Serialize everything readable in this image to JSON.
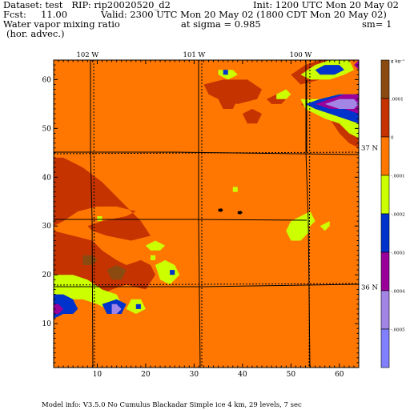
{
  "header": {
    "dataset_line": "Dataset: test   RIP: rip20020520_d2",
    "init_line": "Init: 1200 UTC Mon 20 May 02",
    "fcst_line": "Fcst:     11.00",
    "valid_line": "Valid: 2300 UTC Mon 20 May 02 (1800 CDT Mon 20 May 02)",
    "field_line": "Water vapor mixing ratio",
    "sigma_line": "at sigma = 0.985",
    "sm_line": "sm= 1",
    "advec_line": "(hor. advec.)"
  },
  "footer": "Model info: V3.5.0  No Cumulus   Blackadar   Simple ice      4 km,   29 levels,      7 sec",
  "colors": {
    "background_field": "#ff7700",
    "dark_red": "#c43300",
    "brown": "#8a4a10",
    "yellow_green": "#ccff00",
    "blue": "#0033cc",
    "purple": "#990099",
    "lavender": "#a385e6",
    "periwinkle": "#8080ff"
  },
  "chart_data": {
    "type": "heatmap",
    "xlim": [
      1,
      64
    ],
    "ylim": [
      1,
      64
    ],
    "x_ticks": [
      10,
      20,
      30,
      40,
      50,
      60
    ],
    "y_ticks": [
      10,
      20,
      30,
      40,
      50,
      60
    ],
    "top_labels": [
      {
        "x": 8,
        "text": "102 W"
      },
      {
        "x": 30,
        "text": "101 W"
      },
      {
        "x": 52,
        "text": "100 W"
      }
    ],
    "right_labels": [
      {
        "y": 46,
        "text": "37 N"
      },
      {
        "y": 17.5,
        "text": "36 N"
      }
    ],
    "colorbar": {
      "labels": [
        {
          "value": 0.0002,
          "text": "g kg⁻¹"
        },
        {
          "value": 0.0001,
          "text": ".0001"
        },
        {
          "value": 0,
          "text": "0"
        },
        {
          "value": -0.0001,
          "text": "-.0001"
        },
        {
          "value": -0.0002,
          "text": "-.0002"
        },
        {
          "value": -0.0003,
          "text": "-.0003"
        },
        {
          "value": -0.0004,
          "text": "-.0004"
        },
        {
          "value": -0.0005,
          "text": "-.0005"
        }
      ],
      "bands": [
        {
          "from": 0.0001,
          "to": 0.0002,
          "color": "#8a4a10"
        },
        {
          "from": 0,
          "to": 0.0001,
          "color": "#c43300"
        },
        {
          "from": -0.0001,
          "to": 0,
          "color": "#ff7700"
        },
        {
          "from": -0.0002,
          "to": -0.0001,
          "color": "#ccff00"
        },
        {
          "from": -0.0003,
          "to": -0.0002,
          "color": "#0033cc"
        },
        {
          "from": -0.0004,
          "to": -0.0003,
          "color": "#990099"
        },
        {
          "from": -0.0005,
          "to": -0.0004,
          "color": "#a385e6"
        },
        {
          "from": -0.0006,
          "to": -0.0005,
          "color": "#8080ff"
        }
      ]
    },
    "regions": [
      {
        "color": "#c43300",
        "points": [
          [
            1,
            44
          ],
          [
            3,
            44
          ],
          [
            7,
            42
          ],
          [
            11,
            39
          ],
          [
            15,
            35
          ],
          [
            19,
            31
          ],
          [
            21,
            28
          ],
          [
            17,
            27
          ],
          [
            12,
            28
          ],
          [
            9,
            29
          ],
          [
            8,
            30
          ],
          [
            11,
            31
          ],
          [
            16,
            32
          ],
          [
            18,
            33
          ],
          [
            14,
            34
          ],
          [
            10,
            34
          ],
          [
            6,
            33
          ],
          [
            3,
            31
          ],
          [
            1,
            30
          ]
        ]
      },
      {
        "color": "#c43300",
        "points": [
          [
            1,
            29
          ],
          [
            5,
            28
          ],
          [
            9,
            27
          ],
          [
            11,
            25
          ],
          [
            14,
            23
          ],
          [
            16,
            22
          ],
          [
            19,
            23
          ],
          [
            21,
            22
          ],
          [
            22,
            20
          ],
          [
            20,
            17
          ],
          [
            16,
            18
          ],
          [
            13,
            17
          ],
          [
            9,
            15
          ],
          [
            5,
            16
          ],
          [
            2,
            14
          ],
          [
            1,
            15
          ]
        ]
      },
      {
        "color": "#c43300",
        "points": [
          [
            1,
            24
          ],
          [
            2,
            25
          ],
          [
            3,
            24
          ],
          [
            3,
            23
          ],
          [
            1,
            22
          ]
        ]
      },
      {
        "color": "#8a4a10",
        "points": [
          [
            7,
            24
          ],
          [
            9,
            24
          ],
          [
            10,
            23
          ],
          [
            9,
            22
          ],
          [
            7,
            22
          ]
        ]
      },
      {
        "color": "#8a4a10",
        "points": [
          [
            12,
            21
          ],
          [
            14,
            22
          ],
          [
            16,
            21
          ],
          [
            15,
            19
          ],
          [
            13,
            19
          ]
        ]
      },
      {
        "color": "#ccff00",
        "points": [
          [
            1,
            20
          ],
          [
            5,
            20
          ],
          [
            8,
            19
          ],
          [
            11,
            17
          ],
          [
            14,
            16
          ],
          [
            15,
            14
          ],
          [
            14,
            12
          ],
          [
            12,
            13
          ],
          [
            10,
            14
          ],
          [
            7,
            15
          ],
          [
            4,
            15
          ],
          [
            1,
            12
          ]
        ]
      },
      {
        "color": "#0033cc",
        "points": [
          [
            1,
            16
          ],
          [
            3,
            16
          ],
          [
            5,
            15
          ],
          [
            6,
            13
          ],
          [
            5,
            12
          ],
          [
            3,
            12
          ],
          [
            1,
            11
          ]
        ]
      },
      {
        "color": "#990099",
        "points": [
          [
            1,
            14
          ],
          [
            2,
            14
          ],
          [
            3,
            13
          ],
          [
            2,
            12
          ],
          [
            1,
            12
          ]
        ]
      },
      {
        "color": "#0033cc",
        "points": [
          [
            11,
            14
          ],
          [
            14,
            15
          ],
          [
            16,
            14
          ],
          [
            15,
            12
          ],
          [
            12,
            12
          ]
        ]
      },
      {
        "color": "#a385e6",
        "points": [
          [
            13,
            14
          ],
          [
            14,
            14
          ],
          [
            15,
            13
          ],
          [
            14,
            12
          ],
          [
            13,
            12
          ]
        ]
      },
      {
        "color": "#ccff00",
        "points": [
          [
            17,
            15
          ],
          [
            19,
            15
          ],
          [
            20,
            13
          ],
          [
            18,
            12
          ],
          [
            16,
            13
          ]
        ]
      },
      {
        "color": "#0033cc",
        "points": [
          [
            18,
            14
          ],
          [
            19,
            14
          ],
          [
            19,
            13
          ],
          [
            18,
            13
          ]
        ]
      },
      {
        "color": "#ccff00",
        "points": [
          [
            22,
            22
          ],
          [
            24,
            23
          ],
          [
            26,
            22
          ],
          [
            27,
            20
          ],
          [
            25,
            18
          ],
          [
            23,
            19
          ]
        ]
      },
      {
        "color": "#0033cc",
        "points": [
          [
            25,
            21
          ],
          [
            26,
            21
          ],
          [
            26,
            20
          ],
          [
            25,
            20
          ]
        ]
      },
      {
        "color": "#ccff00",
        "points": [
          [
            20,
            26
          ],
          [
            22,
            27
          ],
          [
            24,
            26
          ],
          [
            23,
            25
          ],
          [
            21,
            25
          ]
        ]
      },
      {
        "color": "#ccff00",
        "points": [
          [
            21,
            24
          ],
          [
            22,
            24
          ],
          [
            22,
            23
          ],
          [
            21,
            23
          ]
        ]
      },
      {
        "color": "#ccff00",
        "points": [
          [
            10,
            32
          ],
          [
            11,
            32
          ],
          [
            11,
            31
          ],
          [
            10,
            31
          ]
        ]
      },
      {
        "color": "#c43300",
        "points": [
          [
            32,
            59
          ],
          [
            36,
            60
          ],
          [
            41,
            60
          ],
          [
            44,
            58
          ],
          [
            43,
            56
          ],
          [
            39,
            55
          ],
          [
            35,
            56
          ],
          [
            33,
            57
          ]
        ]
      },
      {
        "color": "#c43300",
        "points": [
          [
            35,
            56
          ],
          [
            37,
            57
          ],
          [
            39,
            56
          ],
          [
            38,
            54
          ],
          [
            36,
            54
          ]
        ]
      },
      {
        "color": "#ccff00",
        "points": [
          [
            35,
            62
          ],
          [
            38,
            62
          ],
          [
            39,
            61
          ],
          [
            37,
            60
          ],
          [
            35,
            61
          ]
        ]
      },
      {
        "color": "#0033cc",
        "points": [
          [
            36,
            62
          ],
          [
            37,
            62
          ],
          [
            37,
            61
          ],
          [
            36,
            61
          ]
        ]
      },
      {
        "color": "#c43300",
        "points": [
          [
            40,
            53
          ],
          [
            42,
            54
          ],
          [
            44,
            53
          ],
          [
            43,
            51
          ],
          [
            41,
            51
          ]
        ]
      },
      {
        "color": "#c43300",
        "points": [
          [
            45,
            56
          ],
          [
            47,
            57
          ],
          [
            49,
            56
          ],
          [
            48,
            55
          ],
          [
            46,
            55
          ]
        ]
      },
      {
        "color": "#ccff00",
        "points": [
          [
            47,
            57
          ],
          [
            49,
            58
          ],
          [
            50,
            57
          ],
          [
            49,
            56
          ],
          [
            47,
            56
          ]
        ]
      },
      {
        "color": "#c43300",
        "points": [
          [
            50,
            61
          ],
          [
            53,
            63
          ],
          [
            56,
            64
          ],
          [
            60,
            64
          ],
          [
            59,
            62
          ],
          [
            56,
            60
          ],
          [
            52,
            59
          ]
        ]
      },
      {
        "color": "#c43300",
        "points": [
          [
            52,
            55
          ],
          [
            56,
            56
          ],
          [
            60,
            56
          ],
          [
            64,
            54
          ],
          [
            64,
            46
          ],
          [
            62,
            47
          ],
          [
            60,
            49
          ],
          [
            58,
            52
          ],
          [
            55,
            53
          ]
        ]
      },
      {
        "color": "#ccff00",
        "points": [
          [
            52,
            61
          ],
          [
            55,
            63
          ],
          [
            58,
            64
          ],
          [
            62,
            64
          ],
          [
            63,
            62
          ],
          [
            61,
            61
          ],
          [
            58,
            60
          ],
          [
            54,
            60
          ]
        ]
      },
      {
        "color": "#0033cc",
        "points": [
          [
            55,
            62
          ],
          [
            57,
            63
          ],
          [
            60,
            63
          ],
          [
            61,
            62
          ],
          [
            59,
            61
          ],
          [
            56,
            61
          ]
        ]
      },
      {
        "color": "#ccff00",
        "points": [
          [
            52,
            56
          ],
          [
            56,
            56
          ],
          [
            60,
            57
          ],
          [
            64,
            57
          ],
          [
            64,
            48
          ],
          [
            62,
            49
          ],
          [
            60,
            51
          ],
          [
            57,
            52
          ],
          [
            53,
            54
          ]
        ]
      },
      {
        "color": "#0033cc",
        "points": [
          [
            53,
            55
          ],
          [
            56,
            56
          ],
          [
            60,
            57
          ],
          [
            64,
            57
          ],
          [
            64,
            51
          ],
          [
            61,
            52
          ],
          [
            58,
            53
          ],
          [
            55,
            54
          ]
        ]
      },
      {
        "color": "#990099",
        "points": [
          [
            55,
            55
          ],
          [
            58,
            56
          ],
          [
            61,
            57
          ],
          [
            64,
            57
          ],
          [
            64,
            53
          ],
          [
            61,
            54
          ],
          [
            58,
            54
          ]
        ]
      },
      {
        "color": "#a385e6",
        "points": [
          [
            57,
            55
          ],
          [
            60,
            56
          ],
          [
            63,
            56
          ],
          [
            64,
            55
          ],
          [
            63,
            54
          ],
          [
            60,
            54
          ]
        ]
      },
      {
        "color": "#990099",
        "points": [
          [
            63,
            63
          ],
          [
            64,
            64
          ],
          [
            64,
            62
          ]
        ]
      },
      {
        "color": "#ccff00",
        "points": [
          [
            52,
            32
          ],
          [
            54,
            33
          ],
          [
            55,
            31
          ],
          [
            54,
            30
          ],
          [
            52,
            30
          ]
        ]
      },
      {
        "color": "#ccff00",
        "points": [
          [
            49,
            29
          ],
          [
            50,
            31
          ],
          [
            52,
            32
          ],
          [
            54,
            29
          ],
          [
            52,
            27
          ],
          [
            50,
            27
          ]
        ]
      },
      {
        "color": "#ccff00",
        "points": [
          [
            56,
            30
          ],
          [
            58,
            31
          ],
          [
            58,
            30
          ],
          [
            57,
            29
          ]
        ]
      },
      {
        "color": "#ccff00",
        "points": [
          [
            38,
            38
          ],
          [
            39,
            38
          ],
          [
            39,
            37
          ],
          [
            38,
            37
          ]
        ]
      },
      {
        "color": "#000000",
        "points": [
          [
            35,
            33.5
          ],
          [
            35.7,
            33.6
          ],
          [
            36,
            33.2
          ],
          [
            35.6,
            32.9
          ],
          [
            35,
            33
          ]
        ]
      },
      {
        "color": "#000000",
        "points": [
          [
            39,
            33
          ],
          [
            39.7,
            33.1
          ],
          [
            40,
            32.7
          ],
          [
            39.6,
            32.4
          ],
          [
            39,
            32.5
          ]
        ]
      }
    ]
  }
}
